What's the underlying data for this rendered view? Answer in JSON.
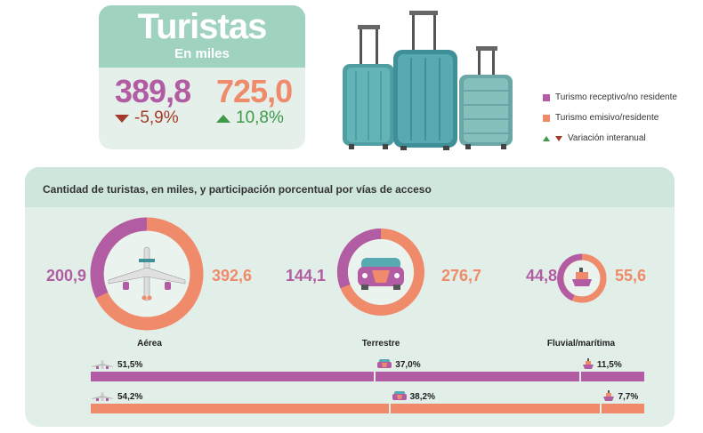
{
  "header": {
    "title": "Turistas",
    "subtitle": "En miles"
  },
  "kpis": {
    "receptivo": {
      "value": "389,8",
      "change": "-5,9%"
    },
    "emisivo": {
      "value": "725,0",
      "change": "10,8%"
    }
  },
  "legend": {
    "receptivo": "Turismo receptivo/no residente",
    "emisivo": "Turismo emisivo/residente",
    "variacion": "Variación interanual"
  },
  "colors": {
    "receptivo": "#b25ca3",
    "emisivo": "#ef8a6a",
    "up": "#3c9a48",
    "down": "#a33a2a"
  },
  "panel": {
    "title": "Cantidad de turistas, en miles, y participación porcentual por vías de acceso"
  },
  "modes": [
    {
      "label": "Aérea",
      "icon": "airplane-icon",
      "receptivo": "200,9",
      "emisivo": "392,6"
    },
    {
      "label": "Terrestre",
      "icon": "car-icon",
      "receptivo": "144,1",
      "emisivo": "276,7"
    },
    {
      "label": "Fluvial/marítima",
      "icon": "ship-icon",
      "receptivo": "44,8",
      "emisivo": "55,6"
    }
  ],
  "chart_data": {
    "type": "bar",
    "categories": [
      "Aérea",
      "Terrestre",
      "Fluvial/marítima"
    ],
    "series": [
      {
        "name": "Turismo receptivo/no residente",
        "values": [
          51.5,
          37.0,
          11.5
        ],
        "labels": [
          "51,5%",
          "37,0%",
          "11,5%"
        ]
      },
      {
        "name": "Turismo emisivo/residente",
        "values": [
          54.2,
          38.2,
          7.7
        ],
        "labels": [
          "54,2%",
          "38,2%",
          "7,7%"
        ]
      }
    ]
  }
}
